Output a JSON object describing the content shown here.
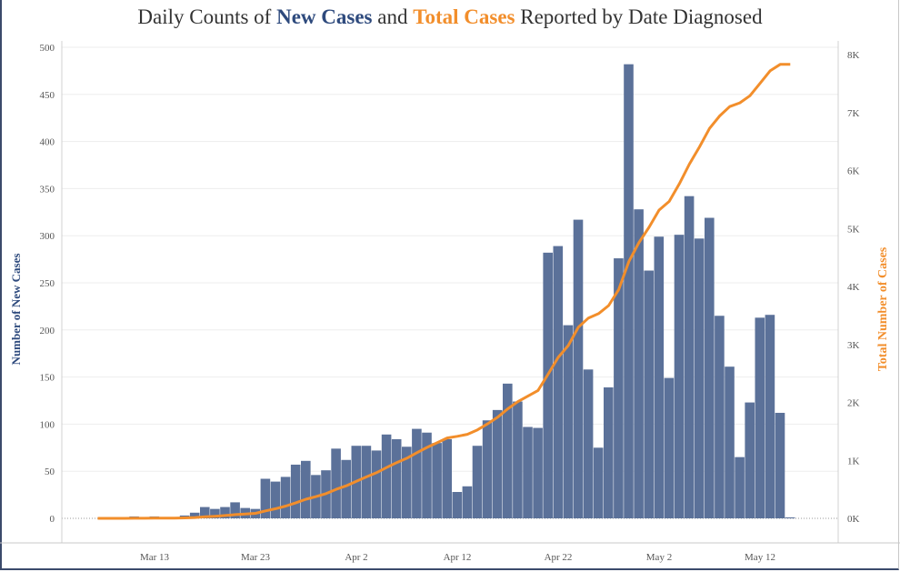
{
  "chart_data": {
    "type": "bar+line",
    "title": {
      "prefix": "Daily Counts of ",
      "series1": "New Cases",
      "middle": " and ",
      "series2": "Total Cases",
      "suffix": " Reported by Date Diagnosed"
    },
    "ylabel_left": "Number of New Cases",
    "ylabel_right": "Total Number of Cases",
    "ylim_left": [
      0,
      500
    ],
    "ylim_right": [
      0,
      8000
    ],
    "left_ticks": [
      "0",
      "50",
      "100",
      "150",
      "200",
      "250",
      "300",
      "350",
      "400",
      "450",
      "500"
    ],
    "right_ticks": [
      "0K",
      "1K",
      "2K",
      "3K",
      "4K",
      "5K",
      "6K",
      "7K",
      "8K"
    ],
    "x_ticks": [
      "Mar 13",
      "Mar 23",
      "Apr 2",
      "Apr 12",
      "Apr 22",
      "May 2",
      "May 12"
    ],
    "x_tick_day_index": [
      5,
      15,
      25,
      35,
      45,
      55,
      65
    ],
    "start_date": "Mar 8",
    "colors": {
      "new_cases": "#5b7199",
      "total_cases": "#f28e2b"
    },
    "series": [
      {
        "name": "New Cases",
        "type": "bar",
        "values": [
          0,
          0,
          0,
          2,
          0,
          2,
          0,
          1,
          3,
          6,
          12,
          10,
          12,
          17,
          11,
          10,
          42,
          39,
          44,
          57,
          61,
          46,
          51,
          74,
          62,
          77,
          77,
          72,
          89,
          84,
          76,
          95,
          91,
          80,
          84,
          28,
          34,
          77,
          104,
          115,
          143,
          124,
          97,
          96,
          282,
          289,
          205,
          317,
          158,
          75,
          139,
          276,
          482,
          328,
          263,
          299,
          149,
          301,
          342,
          297,
          319,
          215,
          161,
          65,
          123,
          213,
          216,
          112,
          1
        ]
      },
      {
        "name": "Total Cases",
        "type": "line",
        "derived": "cumulative sum of New Cases"
      }
    ]
  }
}
